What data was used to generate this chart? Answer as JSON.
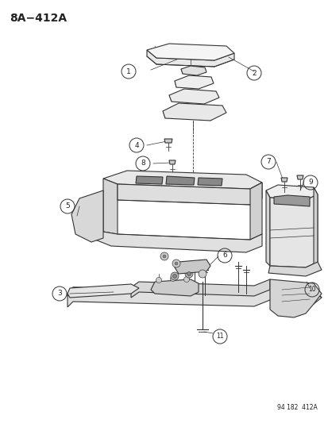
{
  "title": "8A−412A",
  "footer": "94 182  412A",
  "bg_color": "#ffffff",
  "line_color": "#333333",
  "label_color": "#222222",
  "title_fontsize": 10,
  "footer_fontsize": 5.5,
  "label_fontsize": 7
}
